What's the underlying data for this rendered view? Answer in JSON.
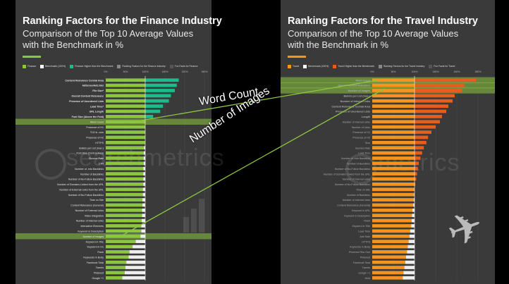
{
  "panels": {
    "finance": {
      "title": "Ranking Factors for the Finance Industry",
      "subtitle_line1": "Comparison of the Top 10 Average Values",
      "subtitle_line2": "with the Benchmark in %",
      "legend": [
        {
          "label": "Finance",
          "color": "#8cc63f"
        },
        {
          "label": "Benchmark (100%)",
          "color": "#ffffff"
        },
        {
          "label": "Finance Higher than the Benchmark",
          "color": "#1abc8c"
        },
        {
          "label": "Ranking Factors for the Finance Industry",
          "color": "#888888"
        },
        {
          "label": "Fun Facts for Finance",
          "color": "#555555"
        }
      ],
      "watermark": "searchmetrics"
    },
    "travel": {
      "title": "Ranking Factors for the Travel Industry",
      "subtitle_line1": "Comparison of the Top 10 Average Values",
      "subtitle_line2": "with the Benchmark in %",
      "legend": [
        {
          "label": "Travel",
          "color": "#f7941d"
        },
        {
          "label": "Benchmark (100%)",
          "color": "#ffffff"
        },
        {
          "label": "Travel Higher than the Benchmark",
          "color": "#e85d1a"
        },
        {
          "label": "Ranking Factors for the Travel Industry",
          "color": "#888888"
        },
        {
          "label": "Fun Facts for Travel",
          "color": "#555555"
        }
      ],
      "watermark": "metrics"
    }
  },
  "annotations": {
    "word_count": "Word Count",
    "number_of_images": "Number of Images"
  },
  "colors": {
    "finance": "#8cc63f",
    "finance_higher": "#1abc8c",
    "travel": "#f7941d",
    "travel_higher": "#e85d1a",
    "benchmark": "#ffffff",
    "highlight": "#8cc63f"
  },
  "chart_data": [
    {
      "type": "bar",
      "title": "Ranking Factors for the Finance Industry",
      "orientation": "horizontal",
      "xlim": [
        0,
        250
      ],
      "x_ticks": [
        "0%",
        "50%",
        "100%",
        "150%",
        "200%",
        "250%"
      ],
      "categories": [
        "Content Relevance Central Area",
        "AdSense/AdLinks",
        "File Size*",
        "Overall Content Relevance",
        "Presence of Unordered Lists",
        "Load Time*",
        "URL Length",
        "Font Size (Above the Fold)",
        "Word Count",
        "Presence of H1",
        "TLD is .com",
        "Presence of H2",
        "HTTPS",
        "Bullets per List (max.)",
        "Font Size (Central Area)",
        "Bounce Rate",
        "CTR",
        "Number of .edu Backlinks",
        "Number of Backlinks",
        "Number of No-Follow Backlinks",
        "Number of Domains Linked from the URL",
        "Number of External Links from the URL",
        "Number of No-Follow Backlinks",
        "Time on Site",
        "Content Relevance (General)",
        "Number of External Links",
        "Video Integration",
        "Number of Internal Links",
        "Interactive Elements",
        "Keyword in Description",
        "Number of Images",
        "Keyword in Title",
        "Keyword in H1",
        "Flash",
        "Keywords in Body",
        "Facebook Total",
        "Tweets",
        "Pinterest",
        "Google +1"
      ],
      "series": [
        {
          "name": "Finance",
          "values": [
            185,
            180,
            175,
            165,
            160,
            145,
            138,
            120,
            100,
            100,
            100,
            100,
            100,
            97,
            96,
            96,
            96,
            95,
            95,
            95,
            95,
            94,
            94,
            93,
            93,
            92,
            92,
            91,
            90,
            90,
            88,
            76,
            68,
            60,
            58,
            52,
            50,
            48,
            42
          ]
        }
      ],
      "highlighted": [
        "Word Count",
        "Number of Images"
      ]
    },
    {
      "type": "bar",
      "title": "Ranking Factors for the Travel Industry",
      "orientation": "horizontal",
      "xlim": [
        0,
        250
      ],
      "x_ticks": [
        "0%",
        "50%",
        "100%",
        "150%",
        "200%",
        "250%"
      ],
      "categories": [
        "Word Count",
        "Overall Content Relevance",
        "Number of Images",
        "Bullets per List (max.)",
        "Number of Internal Links",
        "Content Relevance Central Area",
        "Presence of Unordered Lists",
        "Length",
        "Number of Internal Links",
        "Number of Links",
        "Presence of H1",
        "Presence of H2",
        "Size",
        "Bounce Rate",
        "Load Time",
        "Number of .edu Backlinks",
        "Number of Backlinks",
        "Number of No-Follow Backlinks",
        "Number of Domains Linked from the URL",
        "Number of Internal Links",
        "Number of No-Follow Backlinks",
        "Time on Site",
        "Number of Backlinks",
        "Number of Internal Links",
        "Content Relevance (General)",
        "Keyword in URL",
        "Keyword in Description",
        "Flash",
        "Keyword in Title",
        "Load Time",
        "Add Sale",
        "HTTPS",
        "Keywords in Body",
        "Pinterest Plus One",
        "Pinterest",
        "Facebook Total",
        "Tweets",
        "Google +1",
        "Hold"
      ],
      "series": [
        {
          "name": "Travel",
          "values": [
            245,
            218,
            212,
            195,
            190,
            180,
            175,
            165,
            160,
            150,
            140,
            132,
            128,
            122,
            118,
            114,
            110,
            108,
            106,
            104,
            102,
            100,
            99,
            98,
            97,
            95,
            94,
            93,
            92,
            90,
            88,
            86,
            84,
            82,
            80,
            78,
            76,
            74,
            72
          ]
        }
      ],
      "highlighted": [
        "Word Count",
        "Overall Content Relevance",
        "Number of Images"
      ]
    }
  ]
}
